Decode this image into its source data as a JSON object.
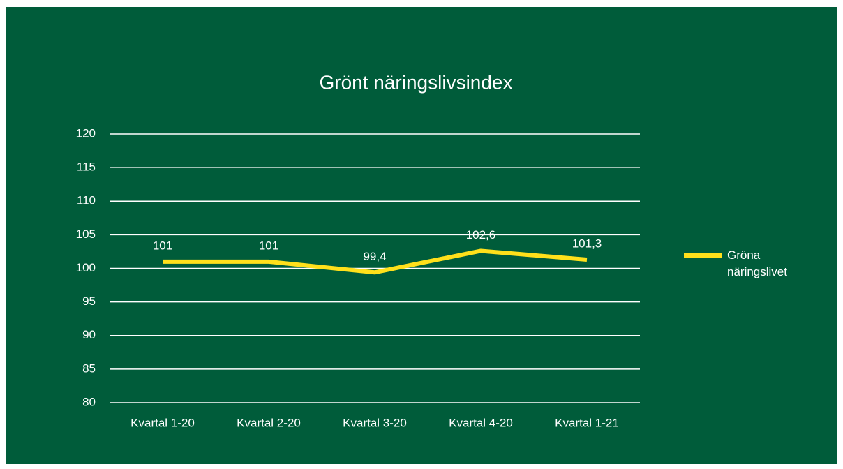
{
  "chart_data": {
    "type": "line",
    "title": "Grönt näringslivsindex",
    "categories": [
      "Kvartal 1-20",
      "Kvartal 2-20",
      "Kvartal 3-20",
      "Kvartal 4-20",
      "Kvartal 1-21"
    ],
    "series": [
      {
        "name": "Gröna näringslivet",
        "color": "#ffe01b",
        "values": [
          101,
          101,
          99.4,
          102.6,
          101.3
        ],
        "value_labels": [
          "101",
          "101",
          "99,4",
          "102,6",
          "101,3"
        ]
      }
    ],
    "ylim": [
      80,
      120
    ],
    "yticks": [
      80,
      85,
      90,
      95,
      100,
      105,
      110,
      115,
      120
    ],
    "grid": true,
    "legend": "right"
  }
}
